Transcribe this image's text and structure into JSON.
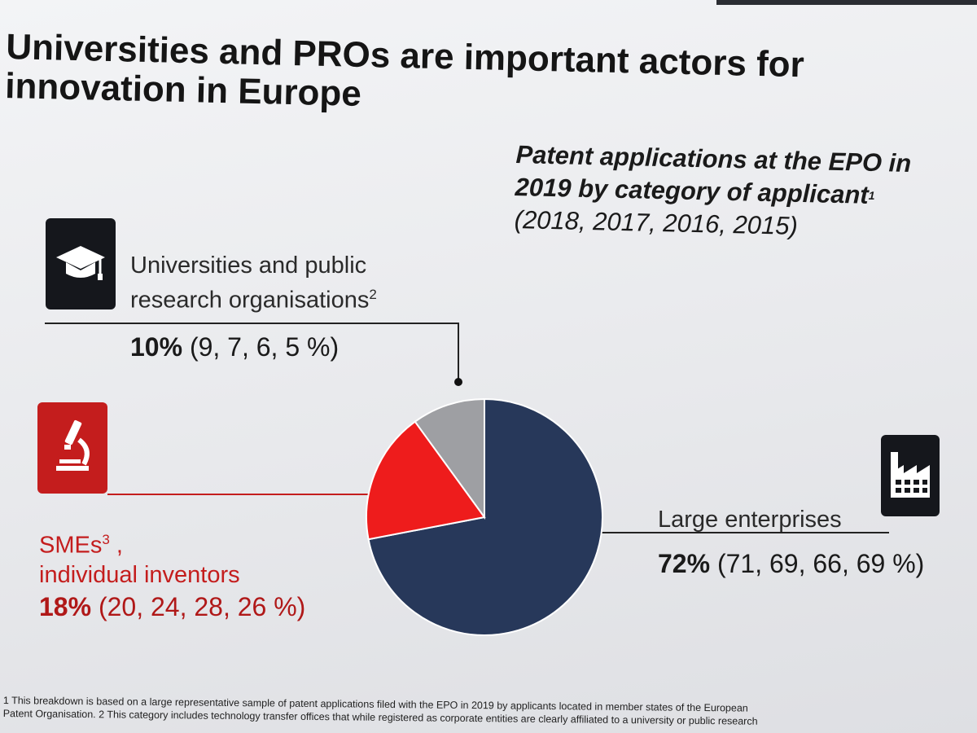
{
  "slide": {
    "title": "Universities and PROs are important actors for innovation in Europe",
    "subtitle": "Patent applications at the EPO in 2019 by category of applicant",
    "subtitle_footnote": "1",
    "subtitle_years": "(2018, 2017, 2016, 2015)",
    "footnote_line1": "1 This breakdown is based on a large representative sample of patent applications filed with the EPO in 2019 by applicants located in member states of the European",
    "footnote_line2": "Patent Organisation. 2 This category includes technology transfer offices that while registered as corporate entities are clearly affiliated to a university or public research"
  },
  "icons": {
    "universities": "graduation-cap-icon",
    "smes": "microscope-icon",
    "enterprises": "factory-icon"
  },
  "colors": {
    "large_enterprises": "#27385a",
    "smes": "#ee1c1c",
    "universities": "#9e9fa3",
    "accent_red": "#c41d1d"
  },
  "chart_data": {
    "type": "pie",
    "title": "Patent applications at the EPO in 2019 by category of applicant",
    "slices": [
      {
        "key": "universities",
        "label": "Universities and public research organisations",
        "label_sup": "2",
        "value": 10,
        "value_text": "10%",
        "history_text": "(9, 7, 6, 5  %)",
        "history": [
          9,
          7,
          6,
          5
        ],
        "color": "#9e9fa3"
      },
      {
        "key": "smes",
        "label_line1": "SMEs",
        "label_sup": "3",
        "label_line1_suffix": " ,",
        "label_line2": "individual inventors",
        "value": 18,
        "value_text": "18%",
        "history_text": "(20, 24, 28, 26  %)",
        "history": [
          20,
          24,
          28,
          26
        ],
        "color": "#ee1c1c"
      },
      {
        "key": "enterprises",
        "label": "Large enterprises",
        "value": 72,
        "value_text": "72%",
        "history_text": "(71, 69, 66, 69 %)",
        "history": [
          71,
          69,
          66,
          69
        ],
        "color": "#27385a"
      }
    ],
    "history_years": [
      2018,
      2017,
      2016,
      2015
    ]
  }
}
